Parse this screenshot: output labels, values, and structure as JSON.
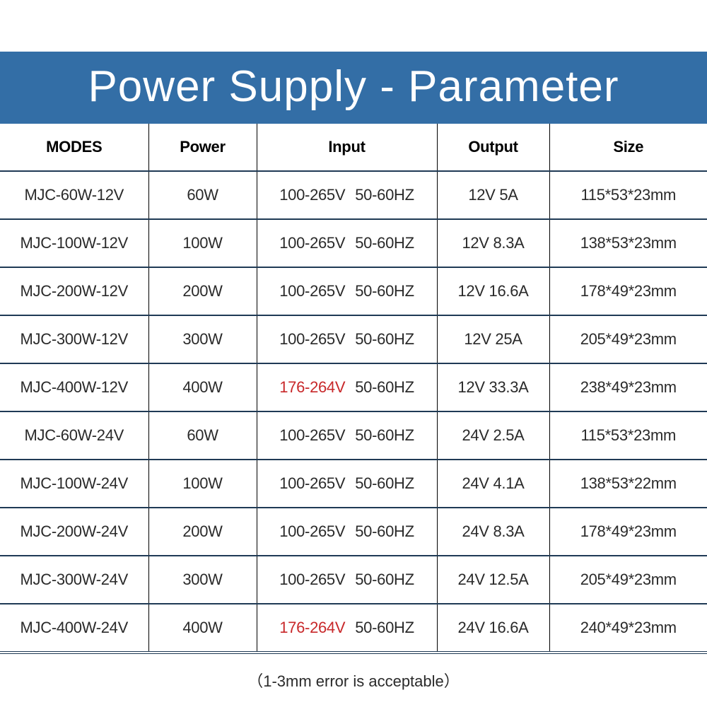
{
  "title": "Power Supply - Parameter",
  "headers": [
    "MODES",
    "Power",
    "Input",
    "Output",
    "Size"
  ],
  "rows": [
    {
      "model": "MJC-60W-12V",
      "power": "60W",
      "voltage": "100-265V",
      "freq": "50-60HZ",
      "voltage_highlight": false,
      "output": "12V 5A",
      "size": "115*53*23mm"
    },
    {
      "model": "MJC-100W-12V",
      "power": "100W",
      "voltage": "100-265V",
      "freq": "50-60HZ",
      "voltage_highlight": false,
      "output": "12V 8.3A",
      "size": "138*53*23mm"
    },
    {
      "model": "MJC-200W-12V",
      "power": "200W",
      "voltage": "100-265V",
      "freq": "50-60HZ",
      "voltage_highlight": false,
      "output": "12V 16.6A",
      "size": "178*49*23mm"
    },
    {
      "model": "MJC-300W-12V",
      "power": "300W",
      "voltage": "100-265V",
      "freq": "50-60HZ",
      "voltage_highlight": false,
      "output": "12V 25A",
      "size": "205*49*23mm"
    },
    {
      "model": "MJC-400W-12V",
      "power": "400W",
      "voltage": "176-264V",
      "freq": "50-60HZ",
      "voltage_highlight": true,
      "output": "12V 33.3A",
      "size": "238*49*23mm"
    },
    {
      "model": "MJC-60W-24V",
      "power": "60W",
      "voltage": "100-265V",
      "freq": "50-60HZ",
      "voltage_highlight": false,
      "output": "24V 2.5A",
      "size": "115*53*23mm"
    },
    {
      "model": "MJC-100W-24V",
      "power": "100W",
      "voltage": "100-265V",
      "freq": "50-60HZ",
      "voltage_highlight": false,
      "output": "24V 4.1A",
      "size": "138*53*22mm"
    },
    {
      "model": "MJC-200W-24V",
      "power": "200W",
      "voltage": "100-265V",
      "freq": "50-60HZ",
      "voltage_highlight": false,
      "output": "24V 8.3A",
      "size": "178*49*23mm"
    },
    {
      "model": "MJC-300W-24V",
      "power": "300W",
      "voltage": "100-265V",
      "freq": "50-60HZ",
      "voltage_highlight": false,
      "output": "24V 12.5A",
      "size": "205*49*23mm"
    },
    {
      "model": "MJC-400W-24V",
      "power": "400W",
      "voltage": "176-264V",
      "freq": "50-60HZ",
      "voltage_highlight": true,
      "output": "24V 16.6A",
      "size": "240*49*23mm"
    }
  ],
  "footer": "（1-3mm error is acceptable）",
  "colors": {
    "banner": "#336ea6",
    "highlight": "#c8282a",
    "rule": "#1f3a55"
  }
}
